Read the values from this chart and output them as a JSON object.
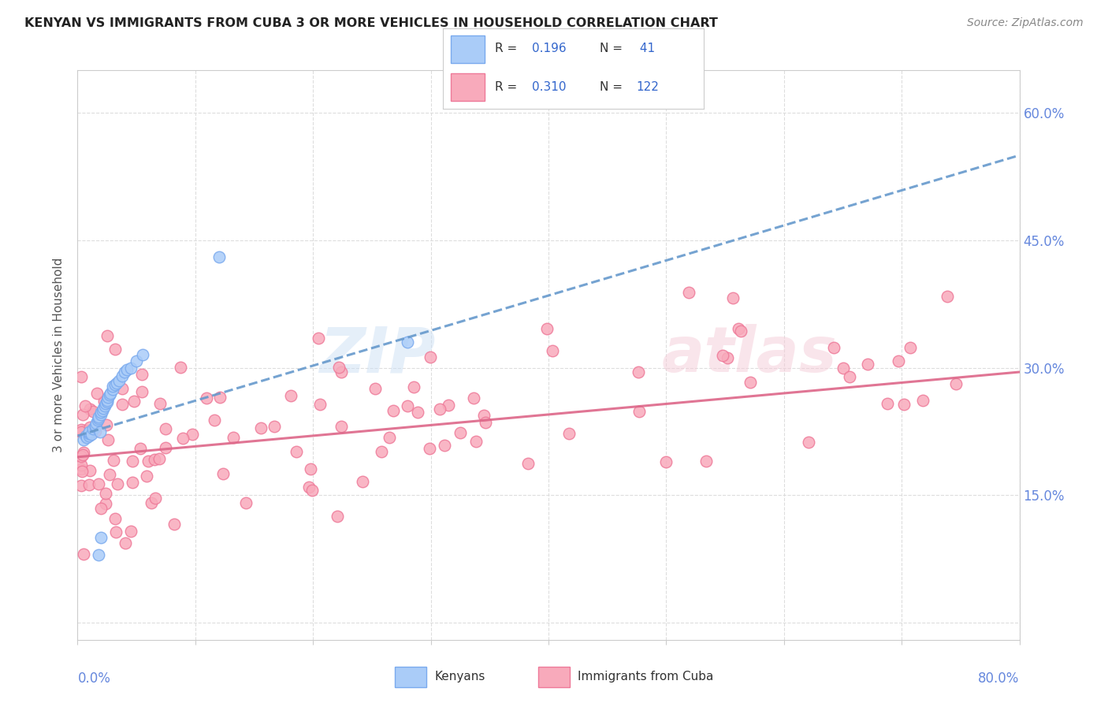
{
  "title": "KENYAN VS IMMIGRANTS FROM CUBA 3 OR MORE VEHICLES IN HOUSEHOLD CORRELATION CHART",
  "source": "Source: ZipAtlas.com",
  "ylabel": "3 or more Vehicles in Household",
  "xlim": [
    0.0,
    0.8
  ],
  "ylim": [
    -0.02,
    0.65
  ],
  "yticks": [
    0.0,
    0.15,
    0.3,
    0.45,
    0.6
  ],
  "ytick_labels": [
    "",
    "15.0%",
    "30.0%",
    "45.0%",
    "60.0%"
  ],
  "xticks": [
    0.0,
    0.1,
    0.2,
    0.3,
    0.4,
    0.5,
    0.6,
    0.7,
    0.8
  ],
  "kenyan_R": 0.196,
  "kenyan_N": 41,
  "cuba_R": 0.31,
  "cuba_N": 122,
  "kenyan_color": "#aaccf8",
  "kenyan_edge_color": "#7aaaee",
  "kenya_line_color": "#6699cc",
  "cuba_color": "#f8aabb",
  "cuba_edge_color": "#ee7a99",
  "cuba_line_color": "#dd6688",
  "background_color": "#ffffff",
  "grid_color": "#dddddd",
  "title_color": "#222222",
  "source_color": "#888888",
  "axis_label_color": "#555555",
  "tick_color": "#6688dd",
  "legend_text_color": "#333333",
  "legend_value_color": "#3366cc",
  "watermark_zip_color": "#cce0f5",
  "watermark_atlas_color": "#f5ccd8",
  "kenyan_line_start_y": 0.22,
  "kenyan_line_end_y": 0.55,
  "cuba_line_start_y": 0.195,
  "cuba_line_end_y": 0.295
}
